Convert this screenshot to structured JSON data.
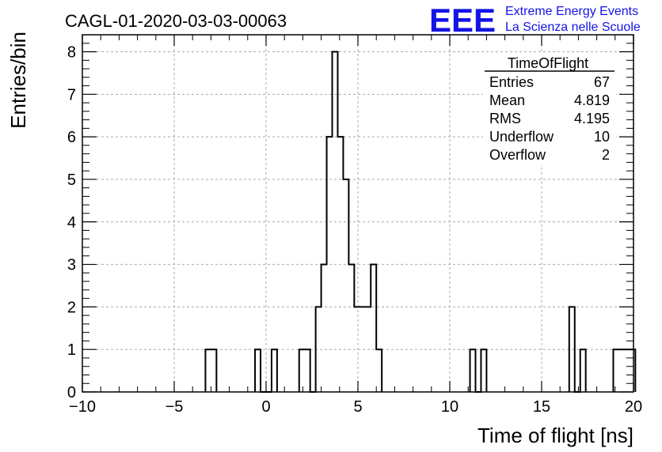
{
  "chart_data": {
    "type": "bar",
    "title": "CAGL-01-2020-03-03-00063",
    "xlabel": "Time of flight [ns]",
    "ylabel": "Entries/bin",
    "xlim": [
      -10,
      20
    ],
    "ylim": [
      0,
      8.4
    ],
    "grid": true,
    "bin_width": 0.3,
    "x": [
      -3.3,
      -3.0,
      -0.6,
      -0.3,
      0.0,
      0.3,
      1.8,
      2.1,
      2.4,
      2.7,
      3.0,
      3.3,
      3.6,
      3.9,
      4.2,
      4.5,
      4.8,
      5.1,
      5.4,
      5.7,
      6.0,
      11.1,
      11.4,
      11.7,
      16.5,
      16.8,
      17.1,
      18.9,
      19.2,
      19.5,
      19.8
    ],
    "values": [
      1,
      1,
      1,
      0,
      0,
      1,
      1,
      1,
      0,
      2,
      3,
      6,
      8,
      6,
      5,
      3,
      2,
      2,
      2,
      3,
      1,
      1,
      0,
      1,
      2,
      0,
      1,
      1,
      1,
      1,
      1
    ],
    "xticks": [
      "−10",
      "−5",
      "0",
      "5",
      "10",
      "15",
      "20"
    ],
    "yticks": [
      "0",
      "1",
      "2",
      "3",
      "4",
      "5",
      "6",
      "7",
      "8"
    ],
    "stats_box": {
      "name": "TimeOfFlight",
      "rows": [
        {
          "label": "Entries",
          "value": "67"
        },
        {
          "label": "Mean",
          "value": "4.819"
        },
        {
          "label": "RMS",
          "value": "4.195"
        },
        {
          "label": "Underflow",
          "value": "10"
        },
        {
          "label": "Overflow",
          "value": "2"
        }
      ]
    }
  },
  "logo": {
    "mark": "EEE",
    "line1": "Extreme Energy Events",
    "line2": "La Scienza nelle Scuole",
    "color": "#1414e6"
  }
}
